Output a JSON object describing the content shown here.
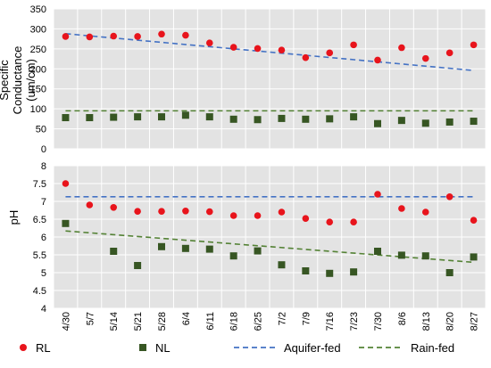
{
  "chart_data": [
    {
      "type": "scatter",
      "ylabel_lines": [
        "Specific",
        "Conductance",
        "(um/cm)"
      ],
      "ylim": [
        0,
        350
      ],
      "yticks": [
        0,
        50,
        100,
        150,
        200,
        250,
        300,
        350
      ],
      "grid": true,
      "series": [
        {
          "name": "RL",
          "marker": "circle",
          "color": "#e8141c",
          "values": [
            281,
            280,
            282,
            281,
            287,
            284,
            265,
            254,
            251,
            247,
            228,
            240,
            260,
            222,
            253,
            226,
            240,
            260
          ]
        },
        {
          "name": "NL",
          "marker": "square",
          "color": "#375623",
          "values": [
            78,
            78,
            79,
            80,
            80,
            84,
            80,
            74,
            73,
            76,
            74,
            75,
            80,
            63,
            71,
            64,
            67,
            69
          ]
        }
      ],
      "trendlines": [
        {
          "name": "Aquifer-fed",
          "color": "#4472c4",
          "start": 288,
          "end": 196
        },
        {
          "name": "Rain-fed",
          "color": "#548235",
          "start": 95,
          "end": 95
        }
      ]
    },
    {
      "type": "scatter",
      "ylabel": "pH",
      "ylim": [
        4,
        8
      ],
      "yticks": [
        4,
        4.5,
        5,
        5.5,
        6,
        6.5,
        7,
        7.5,
        8
      ],
      "grid": true,
      "series": [
        {
          "name": "RL",
          "marker": "circle",
          "color": "#e8141c",
          "values": [
            7.5,
            6.9,
            6.83,
            6.72,
            6.72,
            6.73,
            6.71,
            6.6,
            6.6,
            6.7,
            6.52,
            6.42,
            6.42,
            7.2,
            6.8,
            6.7,
            7.13,
            6.47
          ]
        },
        {
          "name": "NL",
          "marker": "square",
          "color": "#375623",
          "values": [
            6.38,
            null,
            5.6,
            5.2,
            5.73,
            5.68,
            5.66,
            5.47,
            5.61,
            5.22,
            5.05,
            4.98,
            5.02,
            5.6,
            5.49,
            5.47,
            5.0,
            5.44
          ]
        }
      ],
      "trendlines": [
        {
          "name": "Aquifer-fed",
          "color": "#4472c4",
          "start": 7.13,
          "end": 7.13
        },
        {
          "name": "Rain-fed",
          "color": "#548235",
          "start": 6.17,
          "end": 5.29
        }
      ]
    }
  ],
  "categories": [
    "4/30",
    "5/7",
    "5/14",
    "5/21",
    "5/28",
    "6/4",
    "6/11",
    "6/18",
    "6/25",
    "7/2",
    "7/9",
    "7/16",
    "7/23",
    "7/30",
    "8/6",
    "8/13",
    "8/20",
    "8/27"
  ],
  "legend": {
    "position": "bottom",
    "items": [
      {
        "label": "RL",
        "kind": "circle",
        "color": "#e8141c"
      },
      {
        "label": "NL",
        "kind": "square",
        "color": "#375623"
      },
      {
        "label": "Aquifer-fed",
        "kind": "dash",
        "color": "#4472c4"
      },
      {
        "label": "Rain-fed",
        "kind": "dash",
        "color": "#548235"
      }
    ]
  }
}
